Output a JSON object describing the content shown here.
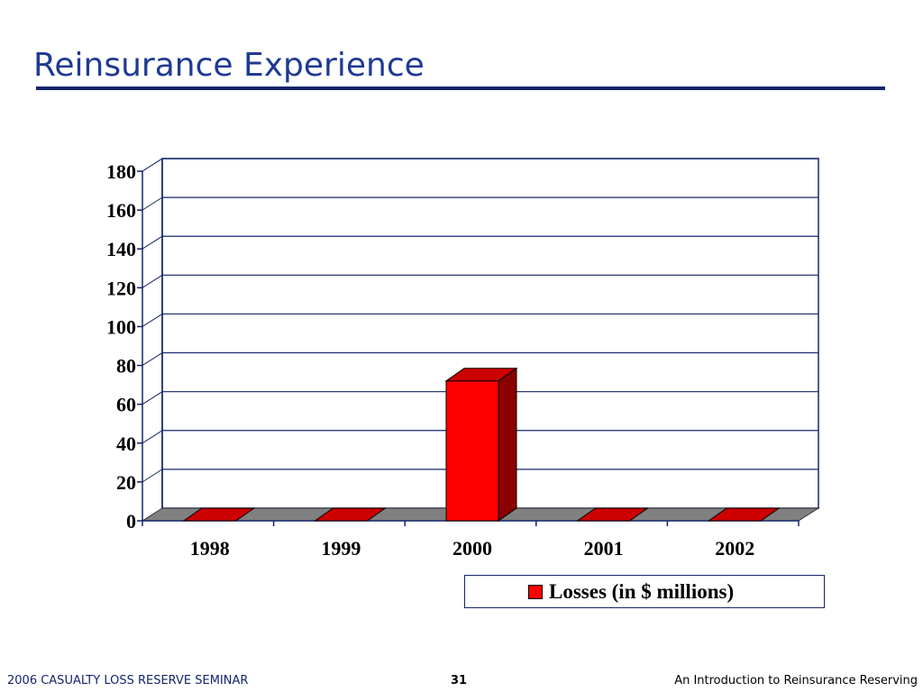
{
  "slide": {
    "title": "Reinsurance Experience",
    "footer_left": "2006 CASUALTY LOSS RESERVE SEMINAR",
    "page_number": "31",
    "footer_right": "An Introduction to Reinsurance Reserving"
  },
  "colors": {
    "title": "#1F3A93",
    "bar_front": "#FF0000",
    "bar_top": "#CC0000",
    "bar_side": "#8B0000",
    "floor": "#808080",
    "axis": "#14256B"
  },
  "chart_data": {
    "type": "bar",
    "style": "3d",
    "categories": [
      "1998",
      "1999",
      "2000",
      "2001",
      "2002"
    ],
    "series": [
      {
        "name": "Losses (in $ millions)",
        "values": [
          0,
          0,
          72,
          0,
          0
        ]
      }
    ],
    "yticks": [
      "0",
      "20",
      "40",
      "60",
      "80",
      "100",
      "120",
      "140",
      "160",
      "180"
    ],
    "ylim": [
      0,
      180
    ],
    "grid": true,
    "legend_position": "bottom-right"
  }
}
